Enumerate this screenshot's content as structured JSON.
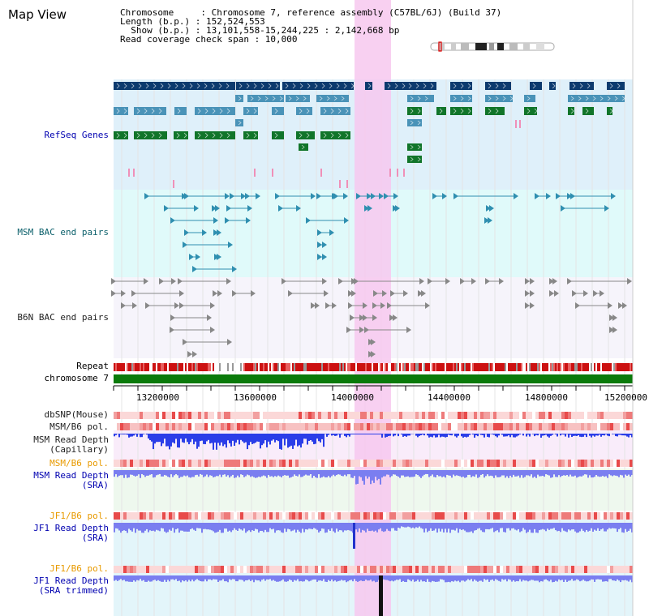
{
  "header": {
    "title": "Map View"
  },
  "info": {
    "line1": "Chromosome     : Chromosome 7, reference assembly (C57BL/6J) (Build 37)",
    "line2": "Length (b.p.) : 152,524,553",
    "line3": "  Show (b.p.) : 13,101,558-15,244,225 : 2,142,668 bp",
    "line4": "Read coverage check span : 10,000"
  },
  "tracks": {
    "refseq": "RefSeq Genes",
    "msm_bac": "MSM BAC end pairs",
    "b6n_bac": "B6N BAC end pairs",
    "repeat": "Repeat",
    "chromosome": "chromosome 7",
    "dbsnp": "dbSNP(Mouse)",
    "msm_b6_pol_1": "MSM/B6 pol.",
    "msm_depth_cap": "MSM Read Depth\n(Capillary)",
    "msm_b6_pol_2": "MSM/B6 pol.",
    "msm_depth_sra": "MSM Read Depth\n(SRA)",
    "jf1_b6_pol_1": "JF1/B6 pol.",
    "jf1_depth_sra": "JF1 Read Depth\n(SRA)",
    "jf1_b6_pol_2": "JF1/B6 pol.",
    "jf1_depth_trim": "JF1 Read Depth\n(SRA trimmed)"
  },
  "axis": {
    "ticks": [
      "13200000",
      "13600000",
      "14000000",
      "14400000",
      "14800000",
      "15200000"
    ]
  },
  "colors": {
    "refseq_bg": "#dff0fa",
    "msm_bac_bg": "#e0fafa",
    "b6n_bac_bg": "#f6f4fb",
    "highlight": "#f7c8ee",
    "navy": "#0c3a6e",
    "teal": "#4a93b8",
    "green": "#11752a",
    "msm_bac": "#2f8fb0",
    "b6n_bac": "#888888",
    "repeat": "#cc1111",
    "chrom": "#0a7a0a",
    "depth_blue": "#2b3ee8",
    "depth_light": "#7a7ef0",
    "label_black": "#222222",
    "label_navy": "#0000b0",
    "label_orange": "#e89a00",
    "label_teal": "#0a5f6a"
  }
}
